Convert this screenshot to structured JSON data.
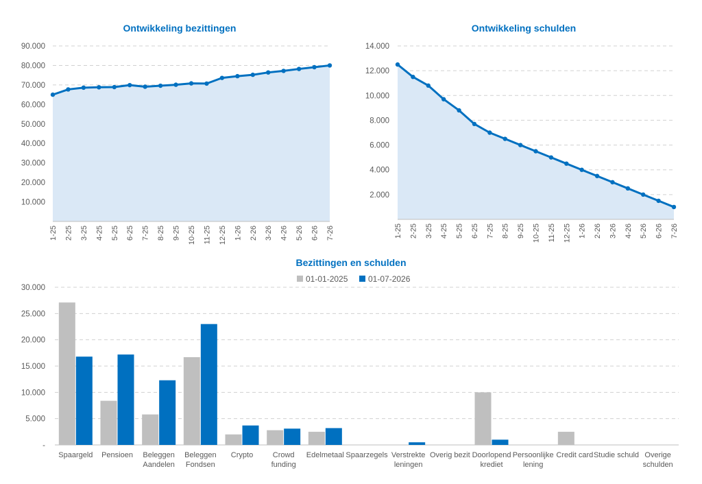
{
  "colors": {
    "accent": "#0070c0",
    "area_fill": "#dae8f6",
    "bar_old": "#bfbfbf",
    "bar_new": "#0070c0",
    "grid": "#d0d0d0",
    "text": "#595959"
  },
  "chart_data": [
    {
      "id": "assets",
      "type": "area",
      "title": "Ontwikkeling bezittingen",
      "x": [
        "1-25",
        "2-25",
        "3-25",
        "4-25",
        "5-25",
        "6-25",
        "7-25",
        "8-25",
        "9-25",
        "10-25",
        "11-25",
        "12-25",
        "1-26",
        "2-26",
        "3-26",
        "4-26",
        "5-26",
        "6-26",
        "7-26"
      ],
      "values": [
        65000,
        67700,
        68600,
        68800,
        68900,
        69900,
        69100,
        69600,
        70100,
        70800,
        70700,
        73600,
        74500,
        75200,
        76400,
        77200,
        78200,
        79100,
        80000
      ],
      "ylim": [
        0,
        90000
      ],
      "yticks": [
        10000,
        20000,
        30000,
        40000,
        50000,
        60000,
        70000,
        80000,
        90000
      ],
      "ytick_labels": [
        "10.000",
        "20.000",
        "30.000",
        "40.000",
        "50.000",
        "60.000",
        "70.000",
        "80.000",
        "90.000"
      ],
      "grid": true
    },
    {
      "id": "debts",
      "type": "area",
      "title": "Ontwikkeling schulden",
      "x": [
        "1-25",
        "2-25",
        "3-25",
        "4-25",
        "5-25",
        "6-25",
        "7-25",
        "8-25",
        "9-25",
        "10-25",
        "11-25",
        "12-25",
        "1-26",
        "2-26",
        "3-26",
        "4-26",
        "5-26",
        "6-26",
        "7-26"
      ],
      "values": [
        12500,
        11500,
        10800,
        9700,
        8800,
        7700,
        7000,
        6500,
        6000,
        5500,
        5000,
        4500,
        4000,
        3500,
        3000,
        2500,
        2000,
        1500,
        1000
      ],
      "ylim": [
        0,
        14000
      ],
      "yticks": [
        2000,
        4000,
        6000,
        8000,
        10000,
        12000,
        14000
      ],
      "ytick_labels": [
        "2.000",
        "4.000",
        "6.000",
        "8.000",
        "10.000",
        "12.000",
        "14.000"
      ],
      "grid": true
    },
    {
      "id": "compare",
      "type": "bar",
      "title": "Bezittingen en schulden",
      "legend_position": "top-center",
      "categories": [
        [
          "Spaargeld"
        ],
        [
          "Pensioen"
        ],
        [
          "Beleggen",
          "Aandelen"
        ],
        [
          "Beleggen",
          "Fondsen"
        ],
        [
          "Crypto"
        ],
        [
          "Crowd",
          "funding"
        ],
        [
          "Edelmetaal"
        ],
        [
          "Spaarzegels"
        ],
        [
          "Verstrekte",
          "leningen"
        ],
        [
          "Overig bezit"
        ],
        [
          "Doorlopend",
          "krediet"
        ],
        [
          "Persoonlijke",
          "lening"
        ],
        [
          "Credit card"
        ],
        [
          "Studie schuld"
        ],
        [
          "Overige",
          "schulden"
        ]
      ],
      "series": [
        {
          "name": "01-01-2025",
          "color_key": "bar_old",
          "values": [
            27100,
            8400,
            5800,
            16700,
            2000,
            2800,
            2500,
            0,
            0,
            0,
            10000,
            0,
            2500,
            0,
            0
          ]
        },
        {
          "name": "01-07-2026",
          "color_key": "bar_new",
          "values": [
            16800,
            17200,
            12300,
            23000,
            3700,
            3100,
            3200,
            0,
            500,
            0,
            1000,
            0,
            0,
            0,
            0
          ]
        }
      ],
      "ylim": [
        0,
        30000
      ],
      "yticks": [
        0,
        5000,
        10000,
        15000,
        20000,
        25000,
        30000
      ],
      "ytick_labels": [
        "-",
        "5.000",
        "10.000",
        "15.000",
        "20.000",
        "25.000",
        "30.000"
      ],
      "grid": true
    }
  ]
}
